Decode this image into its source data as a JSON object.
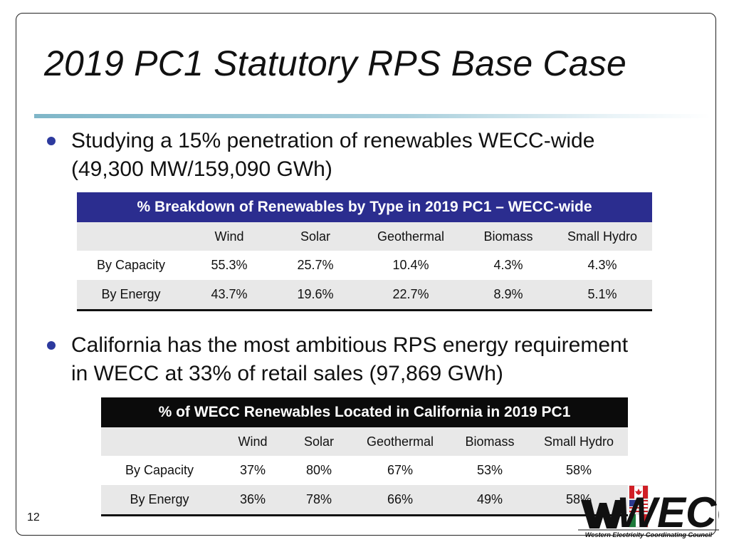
{
  "slide": {
    "title": "2019 PC1 Statutory RPS Base Case",
    "page_number": "12"
  },
  "bullets": [
    {
      "line1": "Studying a 15% penetration of renewables WECC-wide",
      "line2": "(49,300 MW/159,090 GWh)"
    },
    {
      "line1": "California has the most ambitious RPS energy requirement",
      "line2": "in WECC at 33% of retail sales (97,869 GWh)"
    }
  ],
  "table1": {
    "title": "% Breakdown of Renewables by Type in 2019 PC1 – WECC-wide",
    "columns": [
      "",
      "Wind",
      "Solar",
      "Geothermal",
      "Biomass",
      "Small Hydro"
    ],
    "rows": [
      {
        "label": "By Capacity",
        "values": [
          "55.3%",
          "25.7%",
          "10.4%",
          "4.3%",
          "4.3%"
        ]
      },
      {
        "label": "By Energy",
        "values": [
          "43.7%",
          "19.6%",
          "22.7%",
          "8.9%",
          "5.1%"
        ]
      }
    ]
  },
  "table2": {
    "title": "% of WECC Renewables Located in California in 2019 PC1",
    "columns": [
      "",
      "Wind",
      "Solar",
      "Geothermal",
      "Biomass",
      "Small Hydro"
    ],
    "rows": [
      {
        "label": "By Capacity",
        "values": [
          "37%",
          "80%",
          "67%",
          "53%",
          "58%"
        ]
      },
      {
        "label": "By Energy",
        "values": [
          "36%",
          "78%",
          "66%",
          "49%",
          "58%"
        ]
      }
    ]
  },
  "logo": {
    "mark_text": "WECC",
    "caption": "Western Electricity Coordinating Council"
  },
  "colors": {
    "table1_header": "#2b2d8f",
    "table2_header": "#0b0b0b",
    "bullet": "#2d3a9e",
    "logo_red": "#d01f26"
  }
}
